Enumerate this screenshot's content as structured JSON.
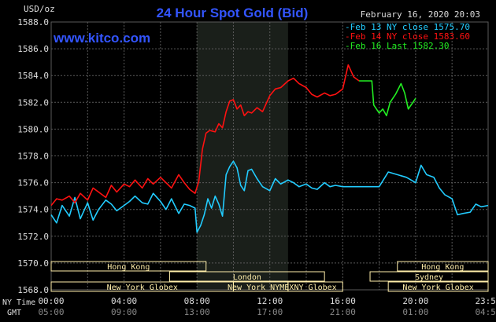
{
  "header": {
    "title": "24 Hour Spot Gold (Bid)",
    "date": "February 16, 2020 20:03",
    "watermark": "www.kitco.com",
    "unit": "USD/oz"
  },
  "colors": {
    "background": "#000000",
    "title": "#3355ff",
    "watermark": "#3355ff",
    "cyan": "#22ccff",
    "red": "#ff1111",
    "green": "#22ee22",
    "grid": "#5a5a5a",
    "session_fill": "#1a1f1a",
    "session_label_text": "#ffeeaa",
    "session_box_border": "#ffeeaa"
  },
  "legend": [
    {
      "text": "-Feb 13 NY close 1575.70",
      "color": "#22ccff"
    },
    {
      "text": "-Feb 14 NY close 1583.60",
      "color": "#ff1111"
    },
    {
      "text": "-Feb 16 Last 1582.30",
      "color": "#22ee22"
    }
  ],
  "axis_row_labels": {
    "ny": "NY Time",
    "gmt": "GMT"
  },
  "sessions": [
    {
      "label": "Hong Kong",
      "start": 0.0,
      "end": 8.5
    },
    {
      "label": "London",
      "start": 6.5,
      "end": 15.0
    },
    {
      "label": "New York Globex",
      "start": 0.0,
      "end": 10.0
    },
    {
      "label": "New York NYMEX",
      "start": 10.0,
      "end": 13.0
    },
    {
      "label": "NY Globex",
      "start": 13.0,
      "end": 16.0
    },
    {
      "label": "Hong Kong",
      "start": 19.0,
      "end": 23.98
    },
    {
      "label": "Sydney",
      "start": 17.5,
      "end": 23.98
    },
    {
      "label": "New York Globex",
      "start": 18.5,
      "end": 23.98
    }
  ],
  "chart_data": {
    "type": "line",
    "title": "24 Hour Spot Gold (Bid)",
    "ylabel": "USD/oz",
    "ylim": [
      1568.0,
      1588.0
    ],
    "yticks": [
      "1588.0",
      "1586.0",
      "1584.0",
      "1582.0",
      "1580.0",
      "1578.0",
      "1576.0",
      "1574.0",
      "1572.0",
      "1570.0",
      "1568.0"
    ],
    "xlim": [
      0,
      23.98
    ],
    "xticks_ny": [
      "00:00",
      "04:00",
      "08:00",
      "12:00",
      "16:00",
      "20:00",
      "23:59"
    ],
    "xticks_gmt": [
      "05:00",
      "09:00",
      "13:00",
      "17:00",
      "21:00",
      "01:00",
      "04:59"
    ],
    "grid": true,
    "legend_position": "top-right",
    "highlight_range": [
      8.0,
      13.0
    ],
    "series": [
      {
        "name": "Feb 13 NY close 1575.70",
        "color": "#22ccff",
        "x": [
          0,
          0.3,
          0.6,
          1.0,
          1.3,
          1.6,
          2.0,
          2.3,
          2.6,
          3.0,
          3.3,
          3.6,
          4.0,
          4.3,
          4.6,
          5.0,
          5.3,
          5.6,
          6.0,
          6.3,
          6.6,
          7.0,
          7.3,
          7.6,
          7.9,
          8.0,
          8.2,
          8.4,
          8.6,
          8.8,
          9.0,
          9.2,
          9.4,
          9.6,
          9.8,
          10.0,
          10.2,
          10.4,
          10.6,
          10.8,
          11.0,
          11.3,
          11.6,
          12.0,
          12.3,
          12.6,
          13.0,
          13.3,
          13.6,
          14.0,
          14.3,
          14.6,
          15.0,
          15.3,
          15.6,
          16.0,
          16.5,
          17.0,
          17.5,
          18.0,
          18.5,
          19.0,
          19.5,
          20.0,
          20.3,
          20.6,
          21.0,
          21.3,
          21.6,
          22.0,
          22.3,
          22.6,
          23.0,
          23.3,
          23.6,
          23.98
        ],
        "values": [
          1573.6,
          1573.0,
          1574.3,
          1573.5,
          1574.9,
          1573.3,
          1574.5,
          1573.2,
          1574.0,
          1574.7,
          1574.4,
          1573.9,
          1574.3,
          1574.6,
          1575.0,
          1574.5,
          1574.4,
          1575.2,
          1574.6,
          1574.0,
          1574.8,
          1573.7,
          1574.4,
          1574.3,
          1574.1,
          1572.3,
          1572.8,
          1573.6,
          1574.8,
          1574.1,
          1575.0,
          1574.4,
          1573.5,
          1576.6,
          1577.2,
          1577.6,
          1577.1,
          1575.8,
          1575.4,
          1576.9,
          1577.0,
          1576.3,
          1575.7,
          1575.4,
          1576.3,
          1575.9,
          1576.2,
          1576.0,
          1575.7,
          1575.9,
          1575.6,
          1575.5,
          1576.0,
          1575.7,
          1575.8,
          1575.7,
          1575.7,
          1575.7,
          1575.7,
          1575.7,
          1576.8,
          1576.6,
          1576.4,
          1576.0,
          1577.3,
          1576.6,
          1576.4,
          1575.6,
          1575.1,
          1574.8,
          1573.6,
          1573.7,
          1573.8,
          1574.4,
          1574.2,
          1574.3
        ]
      },
      {
        "name": "Feb 14 NY close 1583.60",
        "color": "#ff1111",
        "x": [
          0,
          0.3,
          0.6,
          1.0,
          1.3,
          1.6,
          2.0,
          2.3,
          2.6,
          3.0,
          3.3,
          3.6,
          4.0,
          4.3,
          4.6,
          5.0,
          5.3,
          5.6,
          6.0,
          6.3,
          6.6,
          7.0,
          7.3,
          7.6,
          7.9,
          8.1,
          8.3,
          8.5,
          8.7,
          9.0,
          9.2,
          9.4,
          9.6,
          9.8,
          10.0,
          10.2,
          10.4,
          10.6,
          10.8,
          11.0,
          11.3,
          11.6,
          12.0,
          12.3,
          12.6,
          13.0,
          13.3,
          13.6,
          14.0,
          14.3,
          14.6,
          15.0,
          15.3,
          15.6,
          16.0,
          16.3,
          16.6,
          16.9
        ],
        "values": [
          1574.3,
          1574.8,
          1574.7,
          1575.0,
          1574.5,
          1575.2,
          1574.7,
          1575.6,
          1575.3,
          1574.9,
          1575.8,
          1575.3,
          1575.9,
          1575.7,
          1576.2,
          1575.6,
          1576.3,
          1575.9,
          1576.4,
          1576.0,
          1575.6,
          1576.6,
          1576.0,
          1575.5,
          1575.2,
          1576.1,
          1578.5,
          1579.7,
          1579.9,
          1579.8,
          1580.4,
          1580.1,
          1581.3,
          1582.1,
          1582.2,
          1581.5,
          1581.8,
          1581.0,
          1581.3,
          1581.2,
          1581.6,
          1581.3,
          1582.5,
          1583.0,
          1583.1,
          1583.6,
          1583.8,
          1583.4,
          1583.1,
          1582.6,
          1582.4,
          1582.7,
          1582.5,
          1582.6,
          1583.0,
          1584.8,
          1583.9,
          1583.6
        ]
      },
      {
        "name": "Feb 16 Last 1582.30",
        "color": "#22ee22",
        "x": [
          16.9,
          17.6,
          17.7,
          18.0,
          18.2,
          18.4,
          18.6,
          18.9,
          19.2,
          19.4,
          19.6,
          19.8,
          20.0
        ],
        "values": [
          1583.6,
          1583.6,
          1581.8,
          1581.2,
          1581.5,
          1581.0,
          1582.0,
          1582.6,
          1583.4,
          1582.7,
          1581.5,
          1581.9,
          1582.3
        ]
      }
    ]
  }
}
